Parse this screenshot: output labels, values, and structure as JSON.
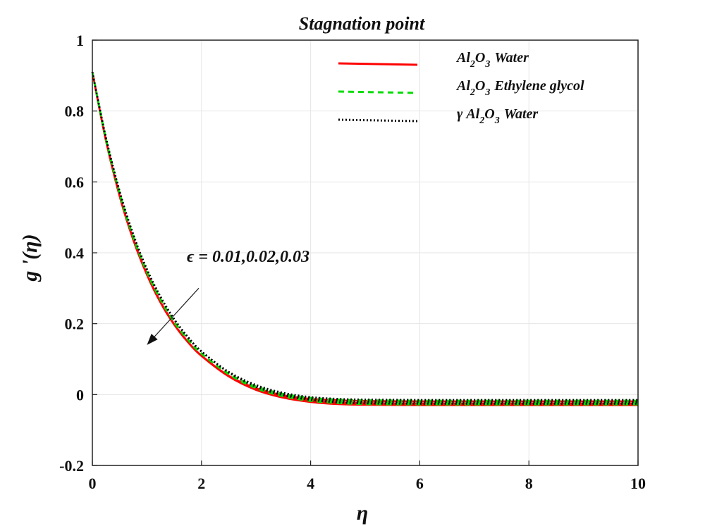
{
  "chart_data": {
    "type": "line",
    "title": "Stagnation point",
    "xlabel": "η",
    "ylabel": "g '(η)",
    "xlim": [
      0,
      10
    ],
    "ylim": [
      -0.2,
      1
    ],
    "x_ticks": [
      0,
      2,
      4,
      6,
      8,
      10
    ],
    "y_ticks": [
      -0.2,
      0,
      0.2,
      0.4,
      0.6,
      0.8,
      1
    ],
    "x_tick_labels": [
      "0",
      "2",
      "4",
      "6",
      "8",
      "10"
    ],
    "y_tick_labels": [
      "-0.2",
      "0",
      "0.2",
      "0.4",
      "0.6",
      "0.8",
      "1"
    ],
    "grid": true,
    "legend_position": "top-right",
    "x": [
      0,
      0.25,
      0.5,
      0.75,
      1,
      1.25,
      1.5,
      1.75,
      2,
      2.5,
      3,
      3.5,
      4,
      4.5,
      5,
      6,
      7,
      8,
      9,
      10
    ],
    "series": [
      {
        "name_parts": [
          "Al",
          "2",
          "O",
          "3",
          "Water"
        ],
        "color": "#ff0000",
        "dash": "solid",
        "epsilon": "0.01",
        "values": [
          0.91,
          0.716,
          0.56,
          0.436,
          0.338,
          0.259,
          0.197,
          0.148,
          0.109,
          0.053,
          0.018,
          -0.002,
          -0.012,
          -0.016,
          -0.018,
          -0.019,
          -0.019,
          -0.019,
          -0.019,
          -0.019
        ]
      },
      {
        "name_parts": [
          "Al",
          "2",
          "O",
          "3",
          "Water"
        ],
        "color": "#ff0000",
        "dash": "solid",
        "epsilon": "0.02",
        "values": [
          0.91,
          0.716,
          0.56,
          0.437,
          0.339,
          0.26,
          0.198,
          0.149,
          0.11,
          0.053,
          0.016,
          -0.006,
          -0.017,
          -0.022,
          -0.024,
          -0.025,
          -0.025,
          -0.025,
          -0.025,
          -0.025
        ]
      },
      {
        "name_parts": [
          "Al",
          "2",
          "O",
          "3",
          "Water"
        ],
        "color": "#ff0000",
        "dash": "solid",
        "epsilon": "0.03",
        "values": [
          0.91,
          0.717,
          0.561,
          0.438,
          0.34,
          0.261,
          0.199,
          0.149,
          0.109,
          0.051,
          0.013,
          -0.009,
          -0.021,
          -0.027,
          -0.029,
          -0.03,
          -0.03,
          -0.03,
          -0.03,
          -0.03
        ]
      },
      {
        "name_parts": [
          "Al",
          "2",
          "O",
          "3",
          "Ethylene glycol"
        ],
        "color": "#00dd00",
        "dash": "8,6",
        "epsilon": "0.01",
        "values": [
          0.91,
          0.72,
          0.566,
          0.443,
          0.345,
          0.267,
          0.204,
          0.155,
          0.115,
          0.059,
          0.023,
          0.002,
          -0.009,
          -0.014,
          -0.016,
          -0.017,
          -0.017,
          -0.017,
          -0.017,
          -0.017
        ]
      },
      {
        "name_parts": [
          "Al",
          "2",
          "O",
          "3",
          "Ethylene glycol"
        ],
        "color": "#00dd00",
        "dash": "8,6",
        "epsilon": "0.02",
        "values": [
          0.91,
          0.72,
          0.567,
          0.444,
          0.346,
          0.268,
          0.205,
          0.156,
          0.116,
          0.058,
          0.021,
          -0.002,
          -0.014,
          -0.019,
          -0.022,
          -0.023,
          -0.023,
          -0.023,
          -0.023,
          -0.023
        ]
      },
      {
        "name_parts": [
          "Al",
          "2",
          "O",
          "3",
          "Ethylene glycol"
        ],
        "color": "#00dd00",
        "dash": "8,6",
        "epsilon": "0.03",
        "values": [
          0.91,
          0.721,
          0.568,
          0.445,
          0.347,
          0.269,
          0.206,
          0.156,
          0.116,
          0.057,
          0.018,
          -0.005,
          -0.018,
          -0.024,
          -0.027,
          -0.028,
          -0.028,
          -0.028,
          -0.028,
          -0.028
        ]
      },
      {
        "name_parts": [
          "γ ",
          "Al",
          "2",
          "O",
          "3",
          "Water"
        ],
        "color": "#000000",
        "dash": "2,3",
        "epsilon": "0.01",
        "values": [
          0.91,
          0.724,
          0.572,
          0.45,
          0.352,
          0.274,
          0.211,
          0.161,
          0.121,
          0.064,
          0.027,
          0.005,
          -0.007,
          -0.012,
          -0.014,
          -0.015,
          -0.015,
          -0.015,
          -0.015,
          -0.015
        ]
      },
      {
        "name_parts": [
          "γ ",
          "Al",
          "2",
          "O",
          "3",
          "Water"
        ],
        "color": "#000000",
        "dash": "2,3",
        "epsilon": "0.02",
        "values": [
          0.91,
          0.724,
          0.573,
          0.451,
          0.353,
          0.275,
          0.212,
          0.162,
          0.122,
          0.063,
          0.025,
          0.001,
          -0.011,
          -0.017,
          -0.02,
          -0.021,
          -0.021,
          -0.021,
          -0.021,
          -0.021
        ]
      },
      {
        "name_parts": [
          "γ ",
          "Al",
          "2",
          "O",
          "3",
          "Water"
        ],
        "color": "#000000",
        "dash": "2,3",
        "epsilon": "0.03",
        "values": [
          0.91,
          0.725,
          0.574,
          0.452,
          0.354,
          0.276,
          0.213,
          0.163,
          0.122,
          0.062,
          0.022,
          -0.002,
          -0.015,
          -0.022,
          -0.025,
          -0.026,
          -0.026,
          -0.026,
          -0.026,
          -0.026
        ]
      }
    ],
    "legend": [
      {
        "parts": [
          "Al",
          "2",
          "O",
          "3",
          "Water"
        ],
        "color": "#ff0000",
        "dash": "solid"
      },
      {
        "parts": [
          "Al",
          "2",
          "O",
          "3",
          "Ethylene glycol"
        ],
        "color": "#00dd00",
        "dash": "8,6"
      },
      {
        "parts": [
          "γ ",
          "Al",
          "2",
          "O",
          "3",
          "Water"
        ],
        "color": "#000000",
        "dash": "2,3"
      }
    ],
    "annotation": {
      "text": "ϵ = 0.01,0.02,0.03",
      "arrow_from": [
        1.95,
        0.3
      ],
      "arrow_to": [
        1.0,
        0.14
      ]
    }
  }
}
